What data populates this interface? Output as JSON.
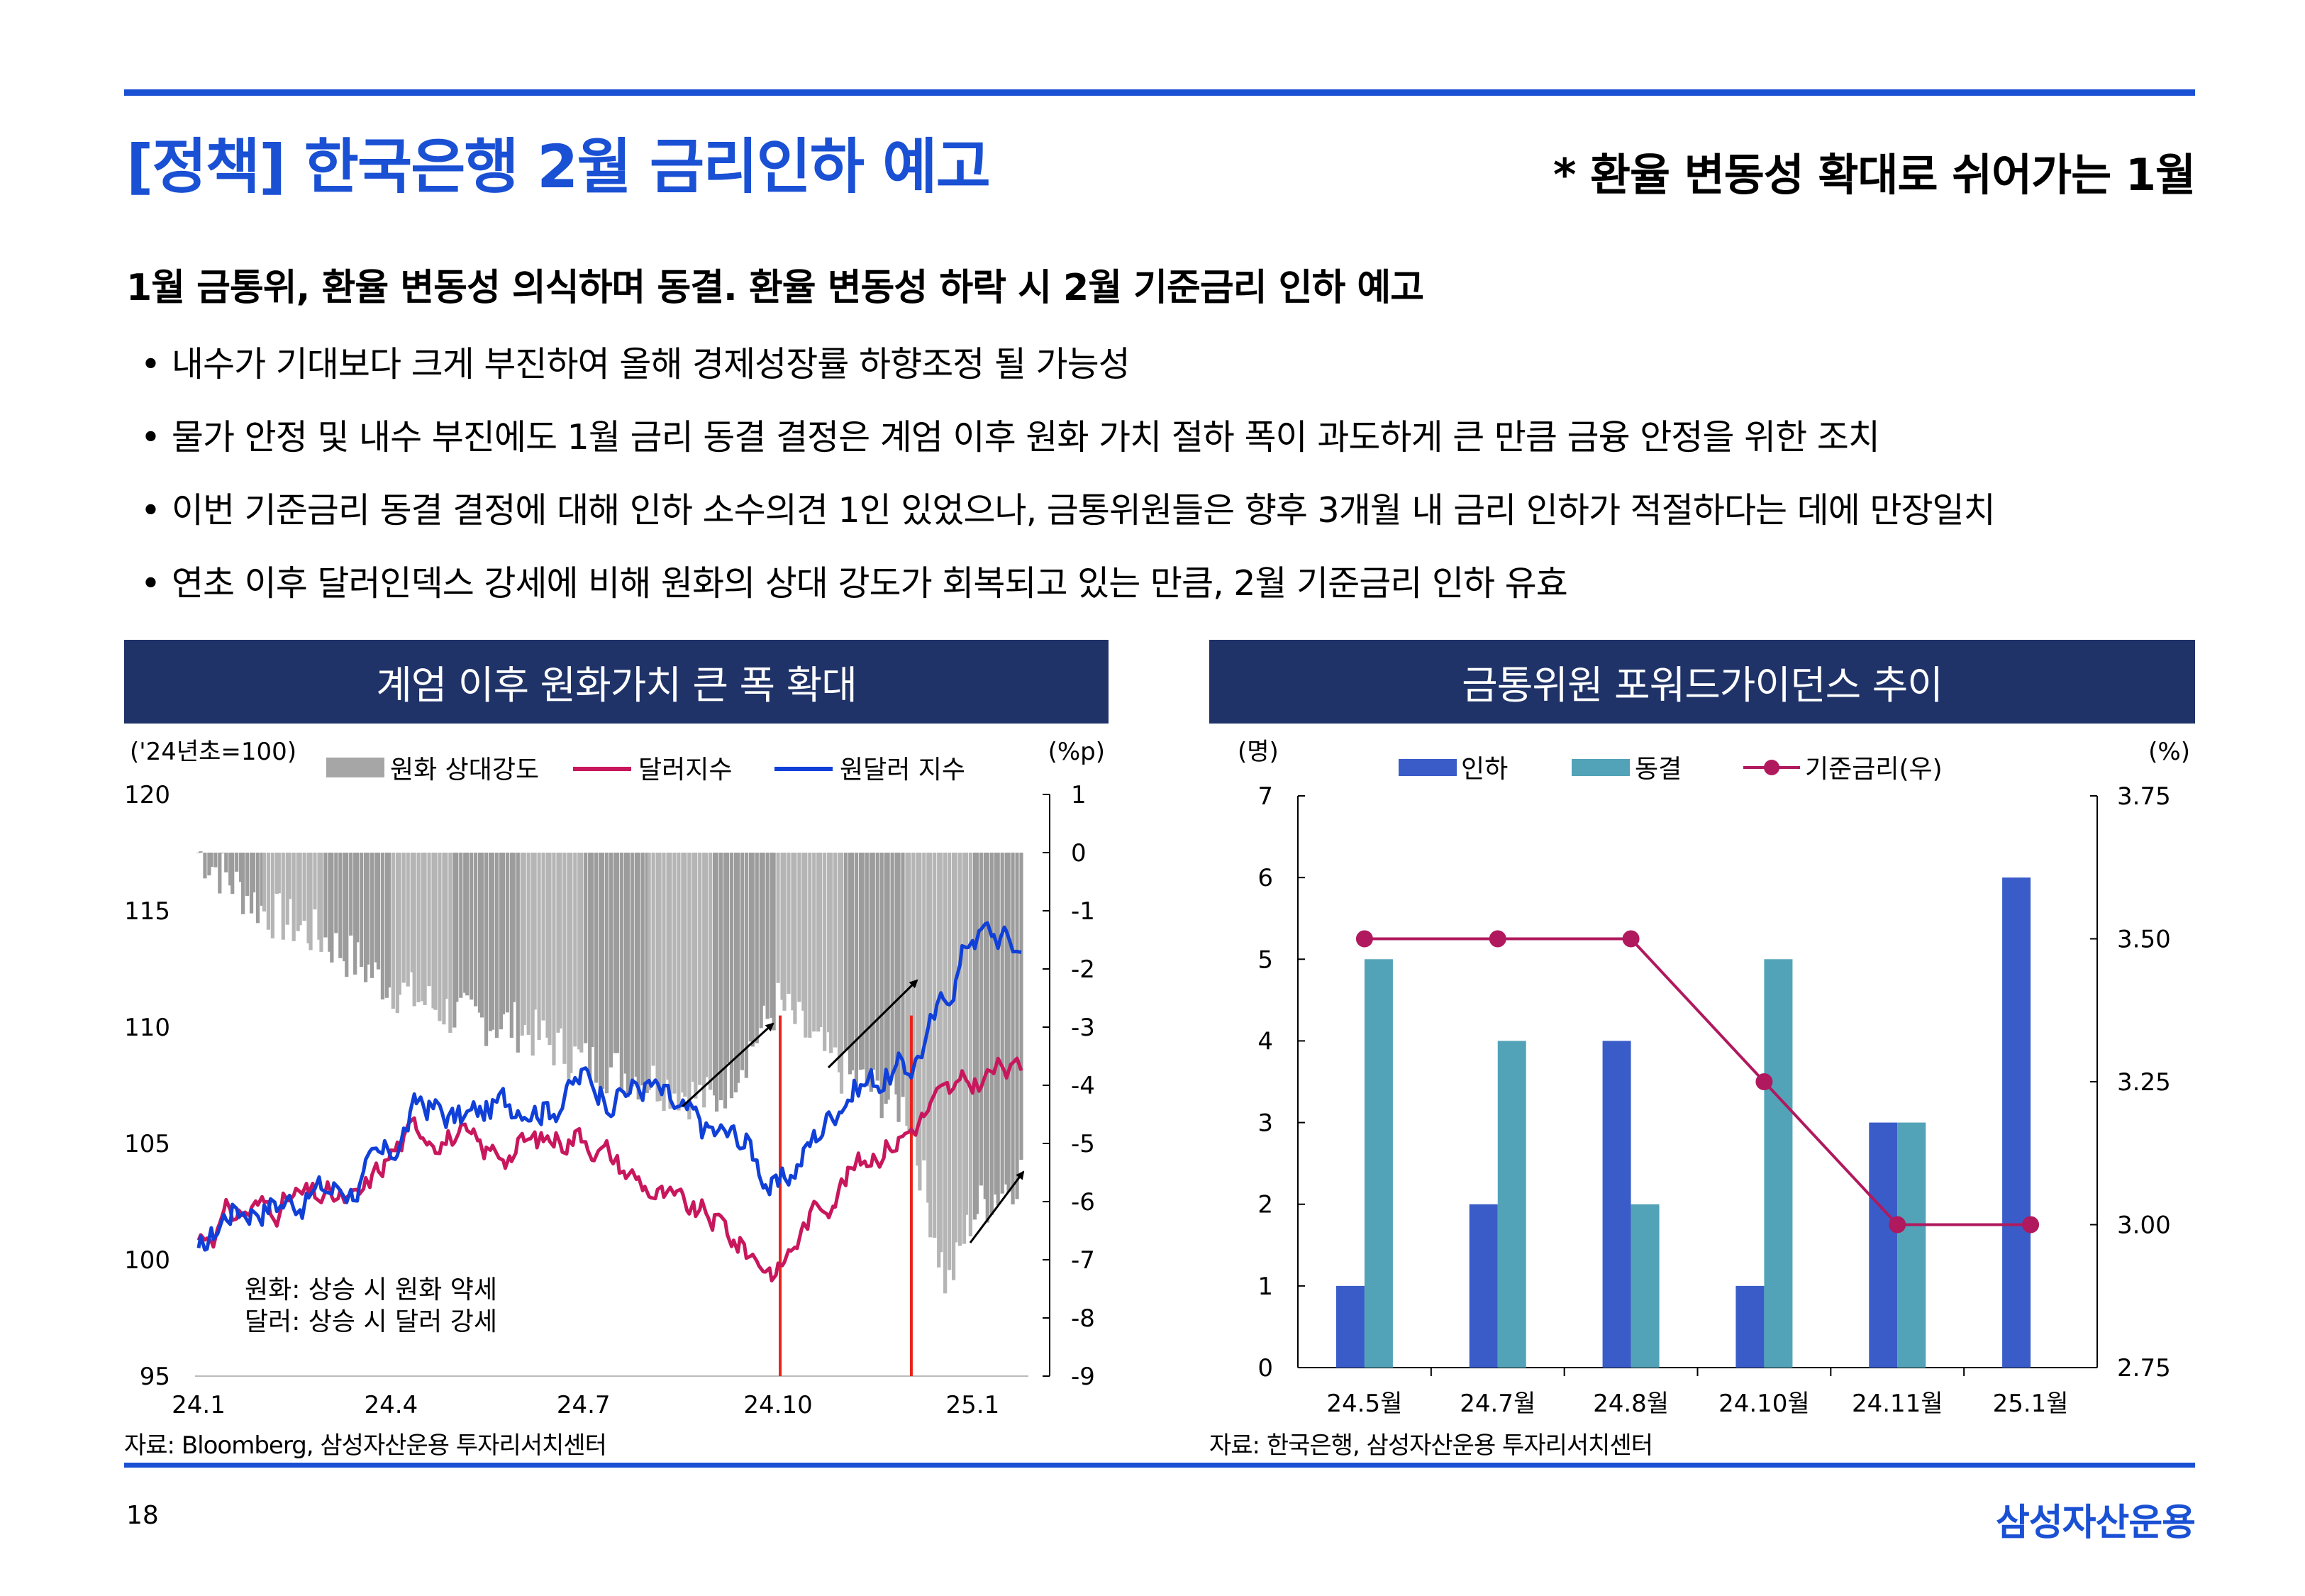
{
  "header": {
    "title": "[정책] 한국은행 2월 금리인하 예고",
    "subtitle": "* 환율 변동성 확대로 쉬어가는 1월"
  },
  "headline": "1월 금통위, 환율 변동성 의식하며 동결. 환율 변동성 하락 시 2월 기준금리 인하 예고",
  "bullets": [
    "내수가 기대보다 크게 부진하여 올해 경제성장률 하향조정 될 가능성",
    "물가 안정 및 내수 부진에도 1월 금리 동결 결정은 계엄 이후 원화 가치 절하 폭이 과도하게 큰 만큼 금융 안정을 위한 조치",
    "이번 기준금리 동결 결정에 대해 인하 소수의견 1인 있었으나, 금통위원들은 향후 3개월 내 금리 인하가 적절하다는 데에 만장일치",
    "연초 이후 달러인덱스 강세에 비해 원화의 상대 강도가 회복되고 있는 만큼, 2월 기준금리 인하 유효"
  ],
  "panels": {
    "left": {
      "title": "계엄 이후 원화가치 큰 폭 확대",
      "source": "자료: Bloomberg, 삼성자산운용 투자리서치센터"
    },
    "right": {
      "title": "금통위원 포워드가이던스 추이",
      "source": "자료: 한국은행, 삼성자산운용 투자리서치센터"
    }
  },
  "footer": {
    "page": "18",
    "logo": "삼성자산운용"
  },
  "chart_data": [
    {
      "type": "line",
      "y_left_unit": "('24년초=100)",
      "y_right_unit": "(%p)",
      "y_left_ticks": [
        "120",
        "115",
        "110",
        "105",
        "100",
        "95"
      ],
      "y_right_ticks": [
        "1",
        "0",
        "-1",
        "-2",
        "-3",
        "-4",
        "-5",
        "-6",
        "-7",
        "-8",
        "-9"
      ],
      "x_ticks": [
        "24.1",
        "24.4",
        "24.7",
        "24.10",
        "25.1"
      ],
      "ylim_left": [
        95,
        120
      ],
      "ylim_right": [
        -9,
        1
      ],
      "legend": [
        "원화 상대강도",
        "달러지수",
        "원달러 지수"
      ],
      "notes": [
        "원화: 상승 시 원화 약세",
        "달러: 상승 시 달러 강세"
      ],
      "colors": {
        "relative_strength": "#a6a6a6",
        "dollar_index": "#c8175d",
        "usdkrw_index": "#1040d8",
        "event_line": "#e8231a"
      },
      "event_dates": [
        "2024-10",
        "2024-12"
      ],
      "series": [
        {
          "name": "원달러 지수",
          "x": [
            "2024-01-01",
            "2024-01-15",
            "2024-02-01",
            "2024-02-15",
            "2024-03-01",
            "2024-03-15",
            "2024-04-01",
            "2024-04-15",
            "2024-05-01",
            "2024-05-15",
            "2024-06-01",
            "2024-06-15",
            "2024-07-01",
            "2024-07-15",
            "2024-08-01",
            "2024-08-15",
            "2024-09-01",
            "2024-09-15",
            "2024-10-01",
            "2024-10-15",
            "2024-11-01",
            "2024-11-15",
            "2024-12-01",
            "2024-12-15",
            "2025-01-01",
            "2025-01-15",
            "2025-01-24"
          ],
          "values": [
            100.0,
            102.2,
            102.4,
            102.6,
            103.0,
            103.2,
            104.5,
            106.8,
            106.0,
            106.3,
            107.0,
            106.6,
            107.8,
            107.2,
            107.5,
            106.2,
            105.4,
            105.2,
            102.8,
            104.8,
            107.2,
            107.8,
            108.1,
            110.3,
            114.2,
            113.9,
            113.3
          ]
        },
        {
          "name": "달러지수",
          "x": [
            "2024-01-01",
            "2024-01-15",
            "2024-02-01",
            "2024-02-15",
            "2024-03-01",
            "2024-03-15",
            "2024-04-01",
            "2024-04-15",
            "2024-05-01",
            "2024-05-15",
            "2024-06-01",
            "2024-06-15",
            "2024-07-01",
            "2024-07-15",
            "2024-08-01",
            "2024-08-15",
            "2024-09-01",
            "2024-09-15",
            "2024-10-01",
            "2024-10-15",
            "2024-11-01",
            "2024-11-15",
            "2024-12-01",
            "2024-12-15",
            "2025-01-01",
            "2025-01-15",
            "2025-01-24"
          ],
          "values": [
            100.9,
            101.9,
            102.3,
            102.6,
            102.7,
            102.3,
            104.6,
            105.7,
            105.3,
            104.5,
            104.9,
            105.2,
            105.5,
            104.3,
            103.1,
            102.2,
            101.7,
            100.5,
            99.5,
            101.7,
            103.5,
            104.7,
            105.5,
            106.8,
            107.5,
            108.3,
            107.9
          ]
        },
        {
          "name": "원화 상대강도",
          "x": [
            "2024-01-01",
            "2024-02-01",
            "2024-03-01",
            "2024-04-01",
            "2024-05-01",
            "2024-06-01",
            "2024-07-01",
            "2024-08-01",
            "2024-09-01",
            "2024-10-01",
            "2024-11-01",
            "2024-12-01",
            "2024-12-20",
            "2025-01-01",
            "2025-01-24"
          ],
          "values": [
            0.0,
            -1.0,
            -1.5,
            -2.3,
            -2.8,
            -3.0,
            -3.6,
            -3.9,
            -4.3,
            -2.6,
            -3.8,
            -4.4,
            -7.5,
            -6.2,
            -5.5
          ]
        }
      ]
    },
    {
      "type": "bar",
      "y_left_unit": "(명)",
      "y_right_unit": "(%)",
      "categories": [
        "24.5월",
        "24.7월",
        "24.8월",
        "24.10월",
        "24.11월",
        "25.1월"
      ],
      "ylim_left": [
        0,
        7
      ],
      "ylim_right": [
        2.75,
        3.75
      ],
      "y_left_ticks": [
        "7",
        "6",
        "5",
        "4",
        "3",
        "2",
        "1",
        "0"
      ],
      "y_right_ticks": [
        "3.75",
        "3.50",
        "3.25",
        "3.00",
        "2.75"
      ],
      "colors": {
        "cut": "#3a5cc8",
        "hold": "#52a3b8",
        "rate": "#b0195e"
      },
      "series": [
        {
          "name": "인하",
          "values": [
            1,
            2,
            4,
            1,
            3,
            6
          ]
        },
        {
          "name": "동결",
          "values": [
            5,
            4,
            2,
            5,
            3,
            0
          ]
        },
        {
          "name": "기준금리(우)",
          "values": [
            3.5,
            3.5,
            3.5,
            3.25,
            3.0,
            3.0
          ]
        }
      ]
    }
  ]
}
